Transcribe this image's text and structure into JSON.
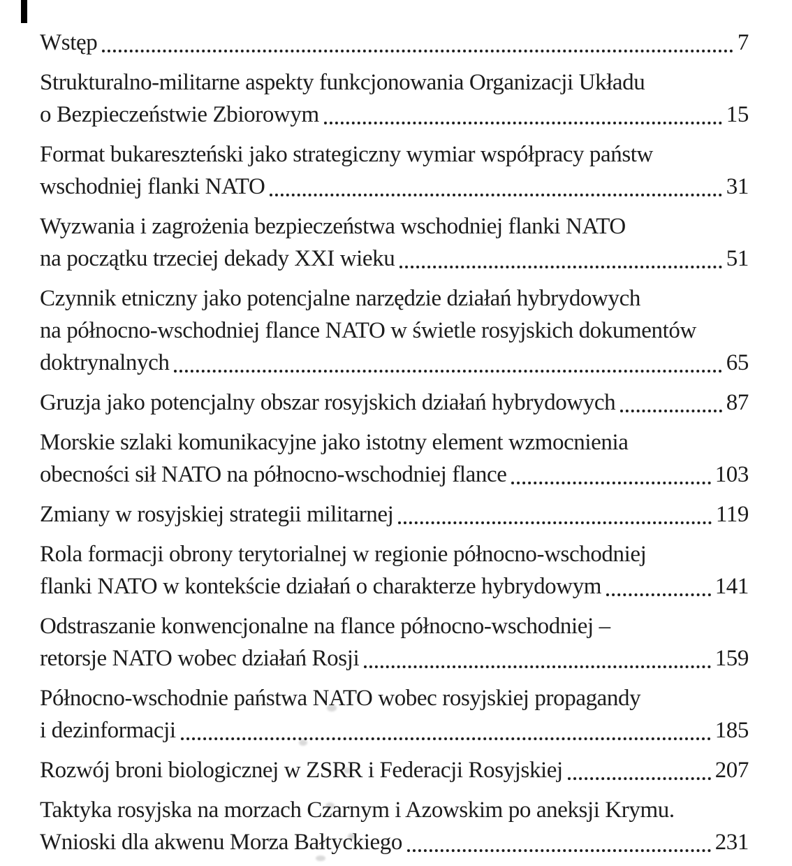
{
  "page": {
    "background": "#ffffff",
    "ink_color": "#1c1c1c",
    "scan_bar_color": "#000000",
    "language": "pl"
  },
  "toc": {
    "entries": [
      {
        "lines": [
          "Wstęp"
        ],
        "page": "7"
      },
      {
        "lines": [
          "Strukturalno-militarne aspekty funkcjonowania Organizacji Układu",
          "o Bezpieczeństwie Zbiorowym"
        ],
        "page": "15"
      },
      {
        "lines": [
          "Format bukareszteński jako strategiczny wymiar współpracy państw",
          "wschodniej flanki NATO"
        ],
        "page": "31"
      },
      {
        "lines": [
          "Wyzwania i zagrożenia bezpieczeństwa wschodniej flanki NATO",
          "na początku trzeciej dekady XXI wieku"
        ],
        "page": "51"
      },
      {
        "lines": [
          "Czynnik etniczny jako potencjalne narzędzie działań hybrydowych",
          "na północno-wschodniej flance NATO w świetle rosyjskich dokumentów",
          "doktrynalnych"
        ],
        "page": "65"
      },
      {
        "lines": [
          "Gruzja jako potencjalny obszar rosyjskich działań hybrydowych"
        ],
        "page": "87"
      },
      {
        "lines": [
          "Morskie szlaki komunikacyjne jako istotny element wzmocnienia",
          "obecności sił NATO na północno-wschodniej flance"
        ],
        "page": "103"
      },
      {
        "lines": [
          "Zmiany w rosyjskiej strategii militarnej"
        ],
        "page": "119"
      },
      {
        "lines": [
          "Rola formacji obrony terytorialnej w regionie północno-wschodniej",
          "flanki NATO w kontekście działań o charakterze hybrydowym"
        ],
        "page": "141"
      },
      {
        "lines": [
          "Odstraszanie konwencjonalne na flance północno-wschodniej –",
          "retorsje NATO wobec działań Rosji"
        ],
        "page": "159"
      },
      {
        "lines": [
          "Północno-wschodnie państwa NATO wobec rosyjskiej propagandy",
          "i dezinformacji"
        ],
        "page": "185"
      },
      {
        "lines": [
          "Rozwój broni biologicznej w ZSRR i Federacji Rosyjskiej"
        ],
        "page": "207"
      },
      {
        "lines": [
          "Taktyka rosyjska na morzach Czarnym i Azowskim po aneksji Krymu.",
          "Wnioski dla akwenu Morza Bałtyckiego"
        ],
        "page": "231"
      }
    ]
  }
}
